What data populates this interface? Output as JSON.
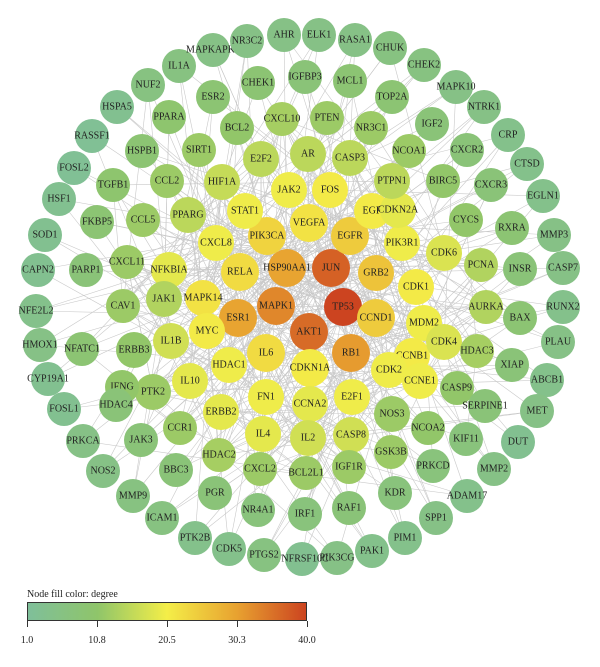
{
  "legend": {
    "title": "Node fill color: degree",
    "min_degree": 1.0,
    "max_degree": 40.0,
    "ticks": [
      "1.0",
      "10.8",
      "20.5",
      "30.3",
      "40.0"
    ],
    "color_stops": [
      "#7fbf9a",
      "#8fc56a",
      "#f4ee48",
      "#e8a230",
      "#cc4420"
    ]
  },
  "network": {
    "nodes": [
      {
        "id": "TP53",
        "degree": 40
      },
      {
        "id": "JUN",
        "degree": 37
      },
      {
        "id": "AKT1",
        "degree": 36
      },
      {
        "id": "MAPK1",
        "degree": 33
      },
      {
        "id": "HSP90AA1",
        "degree": 30
      },
      {
        "id": "RB1",
        "degree": 31
      },
      {
        "id": "ESR1",
        "degree": 30
      },
      {
        "id": "EGFR",
        "degree": 25
      },
      {
        "id": "GRB2",
        "degree": 26
      },
      {
        "id": "CCND1",
        "degree": 25
      },
      {
        "id": "VEGFA",
        "degree": 22
      },
      {
        "id": "PIK3CA",
        "degree": 24
      },
      {
        "id": "RELA",
        "degree": 23
      },
      {
        "id": "MAPK14",
        "degree": 22
      },
      {
        "id": "IL6",
        "degree": 23
      },
      {
        "id": "CDKN1A",
        "degree": 21
      },
      {
        "id": "EGF",
        "degree": 21
      },
      {
        "id": "FOS",
        "degree": 21
      },
      {
        "id": "JAK2",
        "degree": 20
      },
      {
        "id": "STAT1",
        "degree": 20
      },
      {
        "id": "CXCL8",
        "degree": 20
      },
      {
        "id": "NFKBIA",
        "degree": 19
      },
      {
        "id": "PIK3R1",
        "degree": 20
      },
      {
        "id": "CDKN2A",
        "degree": 19
      },
      {
        "id": "CDK1",
        "degree": 21
      },
      {
        "id": "MDM2",
        "degree": 20
      },
      {
        "id": "CCNB1",
        "degree": 21
      },
      {
        "id": "CDK2",
        "degree": 20
      },
      {
        "id": "E2F1",
        "degree": 20
      },
      {
        "id": "CCNA2",
        "degree": 19
      },
      {
        "id": "MYC",
        "degree": 21
      },
      {
        "id": "HDAC1",
        "degree": 20
      },
      {
        "id": "FN1",
        "degree": 20
      },
      {
        "id": "IL4",
        "degree": 19
      },
      {
        "id": "IL2",
        "degree": 17
      },
      {
        "id": "CASP8",
        "degree": 17
      },
      {
        "id": "CCNE1",
        "degree": 20
      },
      {
        "id": "IL10",
        "degree": 19
      },
      {
        "id": "ERBB2",
        "degree": 19
      },
      {
        "id": "IL1B",
        "degree": 17
      },
      {
        "id": "CDK6",
        "degree": 18
      },
      {
        "id": "CDK4",
        "degree": 18
      },
      {
        "id": "AR",
        "degree": 15
      },
      {
        "id": "HIF1A",
        "degree": 16
      },
      {
        "id": "PPARG",
        "degree": 15
      },
      {
        "id": "PTPN1",
        "degree": 15
      },
      {
        "id": "CASP3",
        "degree": 15
      },
      {
        "id": "E2F2",
        "degree": 15
      },
      {
        "id": "AURKA",
        "degree": 14
      },
      {
        "id": "PCNA",
        "degree": 14
      },
      {
        "id": "HDAC3",
        "degree": 13
      },
      {
        "id": "JAK1",
        "degree": 14
      },
      {
        "id": "CAV1",
        "degree": 12
      },
      {
        "id": "CXCL11",
        "degree": 12
      },
      {
        "id": "PTK2",
        "degree": 12
      },
      {
        "id": "CCR1",
        "degree": 12
      },
      {
        "id": "HDAC2",
        "degree": 13
      },
      {
        "id": "CXCL2",
        "degree": 12
      },
      {
        "id": "BCL2L1",
        "degree": 12
      },
      {
        "id": "IGF1R",
        "degree": 12
      },
      {
        "id": "GSK3B",
        "degree": 12
      },
      {
        "id": "NOS3",
        "degree": 12
      },
      {
        "id": "NCOA2",
        "degree": 11
      },
      {
        "id": "CASP9",
        "degree": 11
      },
      {
        "id": "CYCS",
        "degree": 11
      },
      {
        "id": "BIRC5",
        "degree": 11
      },
      {
        "id": "NCOA1",
        "degree": 12
      },
      {
        "id": "NR3C1",
        "degree": 12
      },
      {
        "id": "PTEN",
        "degree": 12
      },
      {
        "id": "CXCL10",
        "degree": 13
      },
      {
        "id": "SIRT1",
        "degree": 12
      },
      {
        "id": "CCL2",
        "degree": 12
      },
      {
        "id": "CCL5",
        "degree": 12
      },
      {
        "id": "ERBB3",
        "degree": 11
      },
      {
        "id": "IFNG",
        "degree": 11
      },
      {
        "id": "BCL2",
        "degree": 11
      },
      {
        "id": "PPARA",
        "degree": 10
      },
      {
        "id": "TGFB1",
        "degree": 10
      },
      {
        "id": "FKBP5",
        "degree": 9
      },
      {
        "id": "HSPB1",
        "degree": 9
      },
      {
        "id": "ESR2",
        "degree": 9
      },
      {
        "id": "CHEK1",
        "degree": 9
      },
      {
        "id": "IGFBP3",
        "degree": 8
      },
      {
        "id": "MCL1",
        "degree": 9
      },
      {
        "id": "TOP2A",
        "degree": 9
      },
      {
        "id": "IGF2",
        "degree": 8
      },
      {
        "id": "CXCR2",
        "degree": 8
      },
      {
        "id": "CXCR3",
        "degree": 8
      },
      {
        "id": "RXRA",
        "degree": 9
      },
      {
        "id": "INSR",
        "degree": 8
      },
      {
        "id": "BAX",
        "degree": 9
      },
      {
        "id": "XIAP",
        "degree": 8
      },
      {
        "id": "SERPINE1",
        "degree": 8
      },
      {
        "id": "KIF11",
        "degree": 7
      },
      {
        "id": "PRKCD",
        "degree": 7
      },
      {
        "id": "KDR",
        "degree": 7
      },
      {
        "id": "RAF1",
        "degree": 8
      },
      {
        "id": "IRF1",
        "degree": 7
      },
      {
        "id": "NR4A1",
        "degree": 7
      },
      {
        "id": "PGR",
        "degree": 8
      },
      {
        "id": "BBC3",
        "degree": 8
      },
      {
        "id": "JAK3",
        "degree": 8
      },
      {
        "id": "HDAC4",
        "degree": 8
      },
      {
        "id": "NFATC1",
        "degree": 9
      },
      {
        "id": "PARP1",
        "degree": 8
      },
      {
        "id": "NUF2",
        "degree": 6
      },
      {
        "id": "IL1A",
        "degree": 6
      },
      {
        "id": "MAPKAPK2",
        "degree": 5
      },
      {
        "id": "NR3C2",
        "degree": 5
      },
      {
        "id": "AHR",
        "degree": 5
      },
      {
        "id": "ELK1",
        "degree": 5
      },
      {
        "id": "RASA1",
        "degree": 5
      },
      {
        "id": "CHUK",
        "degree": 6
      },
      {
        "id": "CHEK2",
        "degree": 6
      },
      {
        "id": "MAPK10",
        "degree": 5
      },
      {
        "id": "NTRK1",
        "degree": 5
      },
      {
        "id": "CRP",
        "degree": 4
      },
      {
        "id": "CTSD",
        "degree": 4
      },
      {
        "id": "EGLN1",
        "degree": 4
      },
      {
        "id": "MMP3",
        "degree": 5
      },
      {
        "id": "CASP7",
        "degree": 5
      },
      {
        "id": "RUNX2",
        "degree": 4
      },
      {
        "id": "PLAU",
        "degree": 5
      },
      {
        "id": "ABCB1",
        "degree": 4
      },
      {
        "id": "MET",
        "degree": 5
      },
      {
        "id": "DUT",
        "degree": 3
      },
      {
        "id": "MMP2",
        "degree": 5
      },
      {
        "id": "ADAM17",
        "degree": 4
      },
      {
        "id": "SPP1",
        "degree": 5
      },
      {
        "id": "PIM1",
        "degree": 4
      },
      {
        "id": "PAK1",
        "degree": 4
      },
      {
        "id": "PIK3CG",
        "degree": 5
      },
      {
        "id": "TNFRSF10C",
        "degree": 3
      },
      {
        "id": "PTGS2",
        "degree": 6
      },
      {
        "id": "CDK5",
        "degree": 4
      },
      {
        "id": "PTK2B",
        "degree": 4
      },
      {
        "id": "ICAM1",
        "degree": 6
      },
      {
        "id": "MMP9",
        "degree": 6
      },
      {
        "id": "NOS2",
        "degree": 5
      },
      {
        "id": "PRKCA",
        "degree": 5
      },
      {
        "id": "FOSL1",
        "degree": 3
      },
      {
        "id": "CYP19A1",
        "degree": 3
      },
      {
        "id": "HMOX1",
        "degree": 5
      },
      {
        "id": "NFE2L2",
        "degree": 4
      },
      {
        "id": "CAPN2",
        "degree": 3
      },
      {
        "id": "SOD1",
        "degree": 3
      },
      {
        "id": "HSF1",
        "degree": 3
      },
      {
        "id": "FOSL2",
        "degree": 2
      },
      {
        "id": "RASSF1",
        "degree": 2
      },
      {
        "id": "HSPA5",
        "degree": 3
      }
    ]
  }
}
